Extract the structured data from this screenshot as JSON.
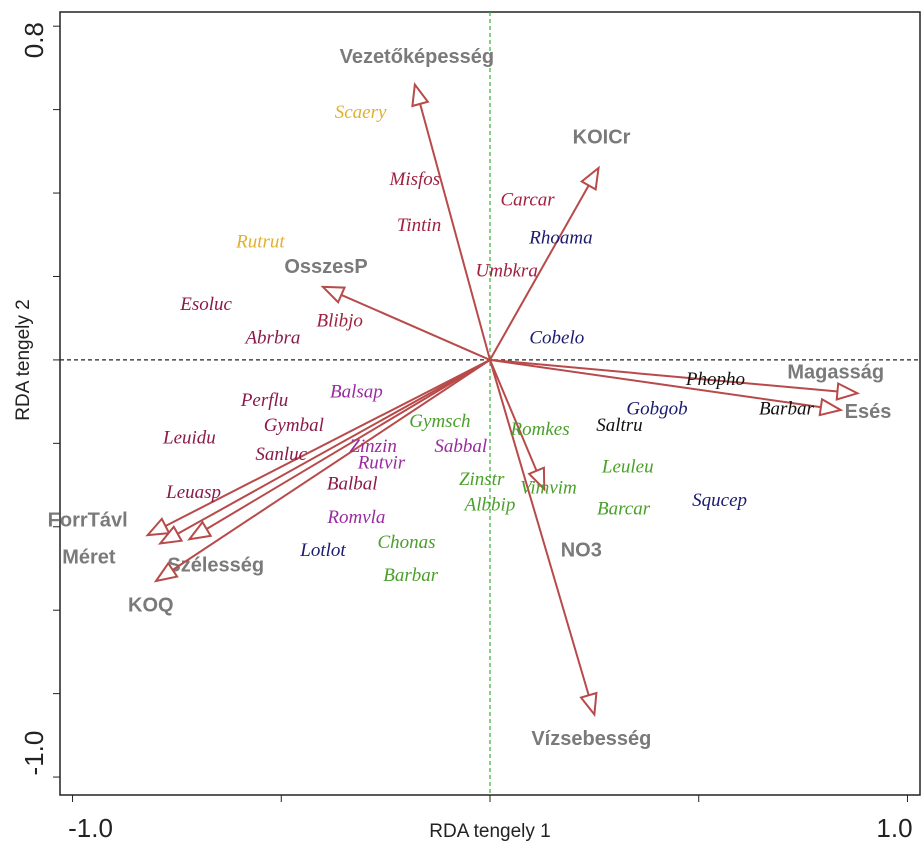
{
  "chart_data": {
    "type": "biplot",
    "x_label": "RDA tengely 1",
    "y_label": "RDA tengely 2",
    "xlim": [
      -1.03,
      1.03
    ],
    "ylim": [
      -1.043,
      0.834
    ],
    "xticks": [
      {
        "value": -1,
        "label": "-1.0"
      },
      {
        "value": 1,
        "label": "1.0"
      }
    ],
    "xminorticks": [
      -0.5,
      0,
      0.5
    ],
    "yticks": [
      {
        "value": 0.8,
        "label": "0.8"
      },
      {
        "value": -1,
        "label": "-1.0"
      }
    ],
    "yminorticks": [
      0.6,
      0.4,
      0.2,
      0,
      -0.2,
      -0.4,
      -0.6,
      -0.8
    ],
    "arrow_color": "#b84a4a",
    "arrows": [
      {
        "name": "Vezetőképesség",
        "x": -0.18,
        "y": 0.66
      },
      {
        "name": "KOICr",
        "x": 0.26,
        "y": 0.46
      },
      {
        "name": "OsszesP",
        "x": -0.4,
        "y": 0.175
      },
      {
        "name": "Magasság",
        "x": 0.88,
        "y": -0.08
      },
      {
        "name": "Esés",
        "x": 0.84,
        "y": -0.12
      },
      {
        "name": "NO3",
        "x": 0.13,
        "y": -0.31
      },
      {
        "name": "Vízsebesség",
        "x": 0.25,
        "y": -0.85
      },
      {
        "name": "ForrTávl",
        "x": -0.82,
        "y": -0.42
      },
      {
        "name": "Méret",
        "x": -0.79,
        "y": -0.44
      },
      {
        "name": "Szélesség",
        "x": -0.72,
        "y": -0.43
      },
      {
        "name": "KOQ",
        "x": -0.8,
        "y": -0.53
      }
    ],
    "points": [
      {
        "name": "Scaery",
        "x": -0.31,
        "y": 0.59,
        "color": "#e0b030"
      },
      {
        "name": "Misfos",
        "x": -0.18,
        "y": 0.43,
        "color": "#a02040"
      },
      {
        "name": "Carcar",
        "x": 0.09,
        "y": 0.38,
        "color": "#a02040"
      },
      {
        "name": "Tintin",
        "x": -0.17,
        "y": 0.32,
        "color": "#a02040"
      },
      {
        "name": "Rhoama",
        "x": 0.17,
        "y": 0.29,
        "color": "#1a1a6e"
      },
      {
        "name": "Rutrut",
        "x": -0.55,
        "y": 0.28,
        "color": "#e0b030"
      },
      {
        "name": "Umbkra",
        "x": 0.04,
        "y": 0.21,
        "color": "#a02040"
      },
      {
        "name": "Esoluc",
        "x": -0.68,
        "y": 0.13,
        "color": "#8b1a4a"
      },
      {
        "name": "Blibjo",
        "x": -0.36,
        "y": 0.09,
        "color": "#a02040"
      },
      {
        "name": "Abrbra",
        "x": -0.52,
        "y": 0.05,
        "color": "#8b1a4a"
      },
      {
        "name": "Cobelo",
        "x": 0.16,
        "y": 0.05,
        "color": "#1a1a6e"
      },
      {
        "name": "Phopho",
        "x": 0.54,
        "y": -0.05,
        "color": "#111111"
      },
      {
        "name": "Barbar",
        "x": 0.71,
        "y": -0.12,
        "color": "#111111"
      },
      {
        "name": "Gobgob",
        "x": 0.4,
        "y": -0.12,
        "color": "#1a1a6e"
      },
      {
        "name": "Perflu",
        "x": -0.54,
        "y": -0.1,
        "color": "#8b1a4a"
      },
      {
        "name": "Balsap",
        "x": -0.32,
        "y": -0.08,
        "color": "#9a2aa0"
      },
      {
        "name": "Gymbal",
        "x": -0.47,
        "y": -0.16,
        "color": "#8b1a4a"
      },
      {
        "name": "Gymsch",
        "x": -0.12,
        "y": -0.15,
        "color": "#4aa02a"
      },
      {
        "name": "Leuidu",
        "x": -0.72,
        "y": -0.19,
        "color": "#8b1a4a"
      },
      {
        "name": "Romkes",
        "x": 0.12,
        "y": -0.17,
        "color": "#4aa02a"
      },
      {
        "name": "Saltru",
        "x": 0.31,
        "y": -0.16,
        "color": "#111111"
      },
      {
        "name": "Sanluc",
        "x": -0.5,
        "y": -0.23,
        "color": "#8b1a4a"
      },
      {
        "name": "Zinzin",
        "x": -0.28,
        "y": -0.21,
        "color": "#9a2aa0"
      },
      {
        "name": "Sabbal",
        "x": -0.07,
        "y": -0.21,
        "color": "#9a2aa0"
      },
      {
        "name": "Rutvir",
        "x": -0.26,
        "y": -0.25,
        "color": "#9a2aa0"
      },
      {
        "name": "Leuleu",
        "x": 0.33,
        "y": -0.26,
        "color": "#4aa02a"
      },
      {
        "name": "Balbal",
        "x": -0.33,
        "y": -0.3,
        "color": "#8b1a4a"
      },
      {
        "name": "Zinstr",
        "x": -0.02,
        "y": -0.29,
        "color": "#4aa02a"
      },
      {
        "name": "Vimvim",
        "x": 0.14,
        "y": -0.31,
        "color": "#4aa02a"
      },
      {
        "name": "Leuasp",
        "x": -0.71,
        "y": -0.32,
        "color": "#8b1a4a"
      },
      {
        "name": "Albbip",
        "x": 0.0,
        "y": -0.35,
        "color": "#4aa02a"
      },
      {
        "name": "Barcar",
        "x": 0.32,
        "y": -0.36,
        "color": "#4aa02a"
      },
      {
        "name": "Squcep",
        "x": 0.55,
        "y": -0.34,
        "color": "#1a1a6e"
      },
      {
        "name": "Romvla",
        "x": -0.32,
        "y": -0.38,
        "color": "#9a2aa0"
      },
      {
        "name": "Chonas",
        "x": -0.2,
        "y": -0.44,
        "color": "#4aa02a"
      },
      {
        "name": "Lotlot",
        "x": -0.4,
        "y": -0.46,
        "color": "#1a1a6e"
      },
      {
        "name": "Barbar",
        "x": -0.19,
        "y": -0.52,
        "color": "#4aa02a"
      }
    ]
  }
}
